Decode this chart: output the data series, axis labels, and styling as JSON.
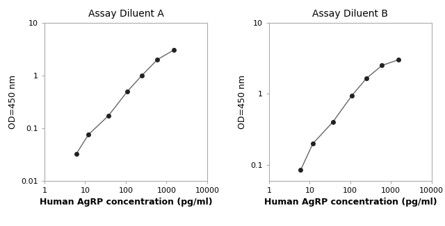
{
  "chart_A": {
    "title": "Assay Diluent A",
    "x": [
      6,
      12,
      37,
      110,
      250,
      600,
      1500
    ],
    "y": [
      0.032,
      0.075,
      0.17,
      0.5,
      1.0,
      2.0,
      3.0
    ]
  },
  "chart_B": {
    "title": "Assay Diluent B",
    "x": [
      6,
      12,
      37,
      110,
      250,
      600,
      1500
    ],
    "y": [
      0.085,
      0.2,
      0.4,
      0.95,
      1.65,
      2.5,
      3.0
    ]
  },
  "xlabel": "Human AgRP concentration (pg/ml)",
  "ylabel": "OD=450 nm",
  "xlim": [
    1,
    10000
  ],
  "ylim_A": [
    0.01,
    10
  ],
  "ylim_B": [
    0.06,
    10
  ],
  "yticks_A": [
    0.01,
    0.1,
    1,
    10
  ],
  "yticks_B": [
    0.1,
    1,
    10
  ],
  "xticks": [
    1,
    10,
    100,
    1000,
    10000
  ],
  "line_color": "#666666",
  "marker_color": "#222222",
  "marker_size": 4,
  "title_fontsize": 10,
  "label_fontsize": 9,
  "tick_fontsize": 8,
  "spine_color": "#aaaaaa",
  "background_color": "#ffffff"
}
